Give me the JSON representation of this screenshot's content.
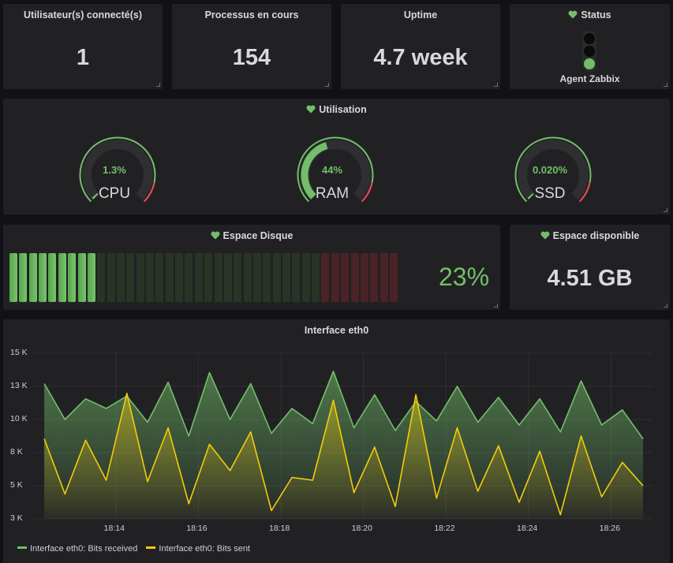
{
  "panels": {
    "users": {
      "title": "Utilisateur(s) connecté(s)",
      "value": "1"
    },
    "processes": {
      "title": "Processus en cours",
      "value": "154"
    },
    "uptime": {
      "title": "Uptime",
      "value": "4.7 week"
    },
    "status": {
      "title": "Status",
      "label": "Agent Zabbix",
      "state": "green"
    },
    "utilisation": {
      "title": "Utilisation",
      "gauges": [
        {
          "name": "CPU",
          "value_text": "1.3%",
          "value": 1.3
        },
        {
          "name": "RAM",
          "value_text": "44%",
          "value": 44
        },
        {
          "name": "SSD",
          "value_text": "0.020%",
          "value": 0.02
        }
      ]
    },
    "disk": {
      "title": "Espace Disque",
      "value_text": "23%",
      "value": 23
    },
    "free": {
      "title": "Espace disponible",
      "value": "4.51 GB"
    },
    "interface": {
      "title": "Interface eth0"
    }
  },
  "colors": {
    "green": "#73bf69",
    "yellow": "#f2cc0c",
    "red": "#f2495c",
    "panel": "#212124"
  },
  "icons": {
    "heart": "heart-icon"
  },
  "chart_data": {
    "type": "area",
    "title": "Interface eth0",
    "ylim": [
      3000,
      15000
    ],
    "y_ticks": [
      "3 K",
      "5 K",
      "8 K",
      "10 K",
      "13 K",
      "15 K"
    ],
    "y_tick_values": [
      3000,
      5400,
      7800,
      10200,
      12600,
      15000
    ],
    "x_ticks": [
      "18:14",
      "18:16",
      "18:18",
      "18:20",
      "18:22",
      "18:24",
      "18:26"
    ],
    "x_tick_minutes": [
      14,
      16,
      18,
      20,
      22,
      24,
      26
    ],
    "x_minutes": [
      12.27,
      12.77,
      13.27,
      13.77,
      14.27,
      14.77,
      15.27,
      15.77,
      16.27,
      16.77,
      17.27,
      17.77,
      18.27,
      18.77,
      19.27,
      19.77,
      20.27,
      20.77,
      21.27,
      21.77,
      22.27,
      22.77,
      23.27,
      23.77,
      24.27,
      24.77,
      25.27,
      25.77,
      26.27,
      26.77
    ],
    "series": [
      {
        "name": "Interface eth0: Bits received",
        "color": "#73bf69",
        "values": [
          12800,
          10200,
          11700,
          11000,
          11900,
          10000,
          12900,
          9000,
          13600,
          10200,
          12800,
          9200,
          11000,
          9900,
          13700,
          9600,
          12000,
          9400,
          11500,
          10100,
          12600,
          10000,
          11800,
          9800,
          11700,
          9300,
          13000,
          9800,
          10900,
          8800
        ]
      },
      {
        "name": "Interface eth0: Bits sent",
        "color": "#f2cc0c",
        "values": [
          8800,
          4800,
          8700,
          5800,
          12100,
          5700,
          9600,
          4100,
          8400,
          6500,
          9300,
          3600,
          6000,
          5800,
          11600,
          4900,
          8200,
          3900,
          12000,
          4500,
          9600,
          5000,
          8300,
          4200,
          7900,
          3300,
          9000,
          4600,
          7100,
          5400
        ]
      }
    ]
  }
}
